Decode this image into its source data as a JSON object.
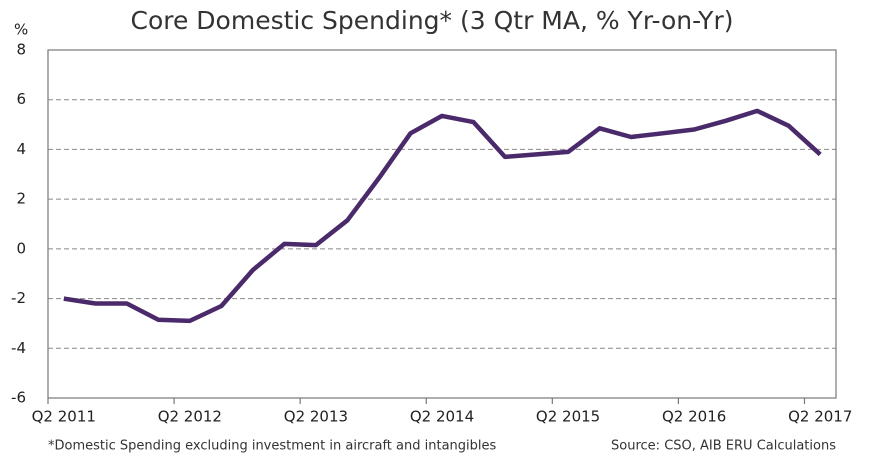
{
  "chart_data": {
    "type": "line",
    "title": "Core Domestic Spending* (3 Qtr MA, % Yr-on-Yr)",
    "y_label": "%",
    "footnote": "*Domestic Spending excluding investment in aircraft and intangibles",
    "source": "Source: CSO, AIB ERU Calculations",
    "categories": [
      "Q2 2011",
      null,
      null,
      null,
      "Q2 2012",
      null,
      null,
      null,
      "Q2 2013",
      null,
      null,
      null,
      "Q2 2014",
      null,
      null,
      null,
      "Q2 2015",
      null,
      null,
      null,
      "Q2 2016",
      null,
      null,
      null,
      "Q2 2017"
    ],
    "series": [
      {
        "name": "Core Domestic Spending",
        "color": "#4a2a6a",
        "values": [
          -2.0,
          -2.2,
          -2.2,
          -2.85,
          -2.9,
          -2.3,
          -0.85,
          0.2,
          0.15,
          1.15,
          2.85,
          4.65,
          5.35,
          5.1,
          3.7,
          3.8,
          3.9,
          4.85,
          4.5,
          4.65,
          4.8,
          5.15,
          5.55,
          4.95,
          3.8
        ]
      }
    ],
    "ylim": [
      -6,
      8
    ],
    "yticks": [
      -6,
      -4,
      -2,
      0,
      2,
      4,
      6,
      8
    ],
    "grid": true
  }
}
